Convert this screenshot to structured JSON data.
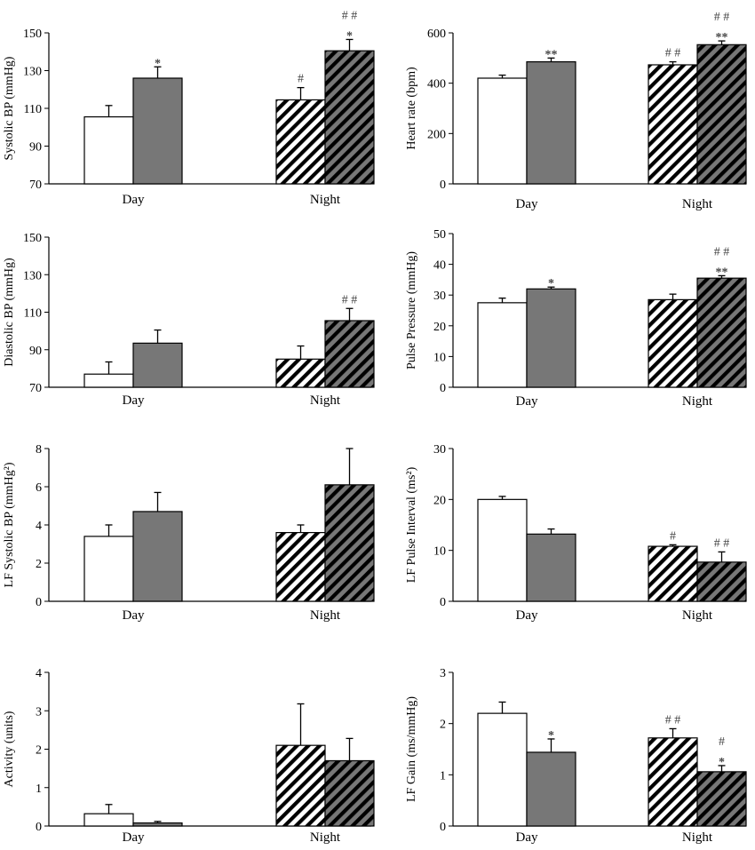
{
  "colors": {
    "control": "#ffffff",
    "treated": "#777777",
    "outline": "#000000",
    "hatch": "#000000"
  },
  "legend": "none",
  "chart_data": [
    {
      "type": "bar",
      "ylabel": "Systolic BP (mmHg)",
      "ylim": [
        70,
        150
      ],
      "yticks": [
        70,
        90,
        110,
        130,
        150
      ],
      "categories": [
        "Day",
        "Night"
      ],
      "series": [
        {
          "style": "white",
          "values": [
            105.5,
            114.5
          ],
          "errors": [
            6,
            6.5
          ],
          "marks": [
            "",
            "#"
          ]
        },
        {
          "style": "grey",
          "values": [
            126,
            140.5
          ],
          "errors": [
            6,
            6
          ],
          "marks": [
            "*",
            "*\n# #"
          ]
        }
      ]
    },
    {
      "type": "bar",
      "ylabel": "Heart rate (bpm)",
      "ylim": [
        0,
        600
      ],
      "yticks": [
        0,
        200,
        400,
        600
      ],
      "categories": [
        "Day",
        "Night"
      ],
      "series": [
        {
          "style": "white",
          "values": [
            420,
            473
          ],
          "errors": [
            12,
            12
          ],
          "marks": [
            "",
            "# #"
          ]
        },
        {
          "style": "grey",
          "values": [
            485,
            553
          ],
          "errors": [
            15,
            15
          ],
          "marks": [
            "**",
            "**\n# #"
          ]
        }
      ]
    },
    {
      "type": "bar",
      "ylabel": "Diastolic BP (mmHg)",
      "ylim": [
        70,
        150
      ],
      "yticks": [
        70,
        90,
        110,
        130,
        150
      ],
      "categories": [
        "Day",
        "Night"
      ],
      "series": [
        {
          "style": "white",
          "values": [
            77,
            85
          ],
          "errors": [
            6.5,
            7
          ],
          "marks": [
            "",
            ""
          ]
        },
        {
          "style": "grey",
          "values": [
            93.5,
            105.5
          ],
          "errors": [
            7,
            6.5
          ],
          "marks": [
            "",
            "# #"
          ]
        }
      ]
    },
    {
      "type": "bar",
      "ylabel": "Pulse Pressure (mmHg)",
      "ylim": [
        0,
        50
      ],
      "yticks": [
        0,
        10,
        20,
        30,
        40,
        50
      ],
      "categories": [
        "Day",
        "Night"
      ],
      "series": [
        {
          "style": "white",
          "values": [
            27.5,
            28.5
          ],
          "errors": [
            1.5,
            1.8
          ],
          "marks": [
            "",
            ""
          ]
        },
        {
          "style": "grey",
          "values": [
            32,
            35.5
          ],
          "errors": [
            0.6,
            0.8
          ],
          "marks": [
            "*",
            "**\n# #"
          ]
        }
      ]
    },
    {
      "type": "bar",
      "ylabel": "LF Systolic BP (mmHg²)",
      "ylim": [
        0,
        8
      ],
      "yticks": [
        0,
        2,
        4,
        6,
        8
      ],
      "categories": [
        "Day",
        "Night"
      ],
      "series": [
        {
          "style": "white",
          "values": [
            3.4,
            3.6
          ],
          "errors": [
            0.6,
            0.4
          ],
          "marks": [
            "",
            ""
          ]
        },
        {
          "style": "grey",
          "values": [
            4.7,
            6.1
          ],
          "errors": [
            1.0,
            1.9
          ],
          "marks": [
            "",
            ""
          ]
        }
      ]
    },
    {
      "type": "bar",
      "ylabel": "LF Pulse Interval (ms²)",
      "ylim": [
        0,
        30
      ],
      "yticks": [
        0,
        10,
        20,
        30
      ],
      "categories": [
        "Day",
        "Night"
      ],
      "series": [
        {
          "style": "white",
          "values": [
            20,
            10.8
          ],
          "errors": [
            0.6,
            0.3
          ],
          "marks": [
            "",
            "#"
          ]
        },
        {
          "style": "grey",
          "values": [
            13.2,
            7.7
          ],
          "errors": [
            1.0,
            2.0
          ],
          "marks": [
            "",
            "# #"
          ]
        }
      ]
    },
    {
      "type": "bar",
      "ylabel": "Activity (units)",
      "ylim": [
        0,
        4
      ],
      "yticks": [
        0,
        1,
        2,
        3,
        4
      ],
      "categories": [
        "Day",
        "Night"
      ],
      "series": [
        {
          "style": "white",
          "values": [
            0.32,
            2.1
          ],
          "errors": [
            0.24,
            1.08
          ],
          "marks": [
            "",
            ""
          ]
        },
        {
          "style": "grey",
          "values": [
            0.08,
            1.7
          ],
          "errors": [
            0.04,
            0.58
          ],
          "marks": [
            "",
            ""
          ]
        }
      ]
    },
    {
      "type": "bar",
      "ylabel": "LF Gain (ms/mmHg)",
      "ylim": [
        0,
        3
      ],
      "yticks": [
        0,
        1,
        2,
        3
      ],
      "categories": [
        "Day",
        "Night"
      ],
      "series": [
        {
          "style": "white",
          "values": [
            2.2,
            1.72
          ],
          "errors": [
            0.22,
            0.18
          ],
          "marks": [
            "",
            "# #"
          ]
        },
        {
          "style": "grey",
          "values": [
            1.44,
            1.06
          ],
          "errors": [
            0.26,
            0.12
          ],
          "marks": [
            "*",
            "*\n#"
          ]
        }
      ]
    }
  ]
}
